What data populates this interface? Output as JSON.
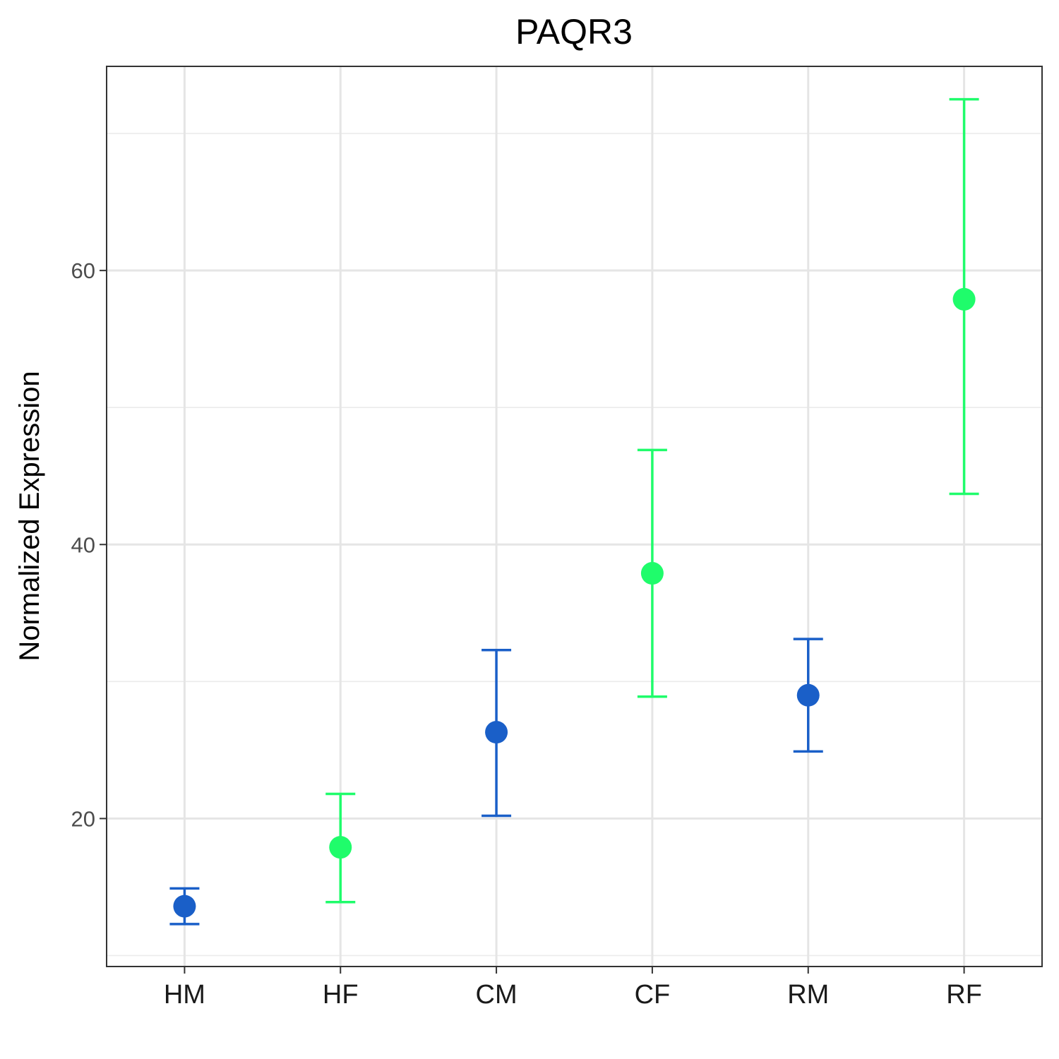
{
  "chart_data": {
    "type": "scatter",
    "title": "PAQR3",
    "xlabel": "",
    "ylabel": "Normalized Expression",
    "categories": [
      "HM",
      "HF",
      "CM",
      "CF",
      "RM",
      "RF"
    ],
    "points": [
      {
        "category": "HM",
        "mean": 13.6,
        "lower": 12.3,
        "upper": 14.9,
        "color": "#1a5fc8"
      },
      {
        "category": "HF",
        "mean": 17.9,
        "lower": 13.9,
        "upper": 21.8,
        "color": "#1ffc6b"
      },
      {
        "category": "CM",
        "mean": 26.3,
        "lower": 20.2,
        "upper": 32.3,
        "color": "#1a5fc8"
      },
      {
        "category": "CF",
        "mean": 37.9,
        "lower": 28.9,
        "upper": 46.9,
        "color": "#1ffc6b"
      },
      {
        "category": "RM",
        "mean": 29.0,
        "lower": 24.9,
        "upper": 33.1,
        "color": "#1a5fc8"
      },
      {
        "category": "RF",
        "mean": 57.9,
        "lower": 43.7,
        "upper": 72.5,
        "color": "#1ffc6b"
      }
    ],
    "ylim": [
      9.2,
      74.9
    ],
    "yticks": [
      20,
      40,
      60
    ],
    "yminor": [
      10,
      30,
      50,
      70
    ],
    "grid": true,
    "legend": "none"
  }
}
